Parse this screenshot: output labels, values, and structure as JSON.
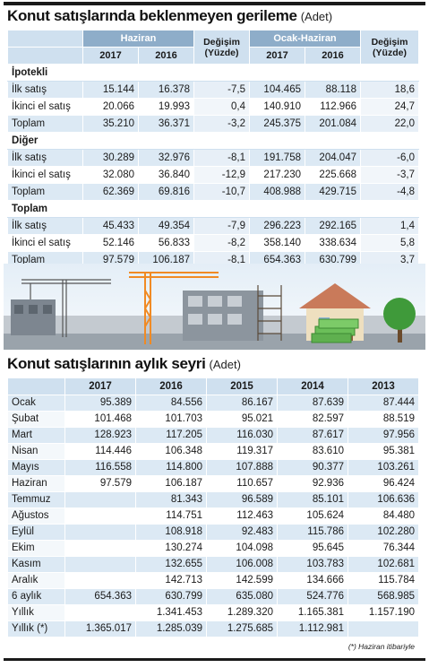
{
  "table1": {
    "title": "Konut satışlarında beklenmeyen gerileme",
    "unit": "(Adet)",
    "period1": "Haziran",
    "period2": "Ocak-Haziran",
    "change_header_line1": "Değişim",
    "change_header_line2": "(Yüzde)",
    "years": [
      "2017",
      "2016"
    ],
    "sections": [
      {
        "name": "İpotekli",
        "rows": [
          {
            "label": "İlk satış",
            "v": [
              "15.144",
              "16.378",
              "-7,5",
              "104.465",
              "88.118",
              "18,6"
            ]
          },
          {
            "label": "İkinci el satış",
            "v": [
              "20.066",
              "19.993",
              "0,4",
              "140.910",
              "112.966",
              "24,7"
            ]
          },
          {
            "label": "Toplam",
            "v": [
              "35.210",
              "36.371",
              "-3,2",
              "245.375",
              "201.084",
              "22,0"
            ]
          }
        ]
      },
      {
        "name": "Diğer",
        "rows": [
          {
            "label": "İlk satış",
            "v": [
              "30.289",
              "32.976",
              "-8,1",
              "191.758",
              "204.047",
              "-6,0"
            ]
          },
          {
            "label": "İkinci el satış",
            "v": [
              "32.080",
              "36.840",
              "-12,9",
              "217.230",
              "225.668",
              "-3,7"
            ]
          },
          {
            "label": "Toplam",
            "v": [
              "62.369",
              "69.816",
              "-10,7",
              "408.988",
              "429.715",
              "-4,8"
            ]
          }
        ]
      },
      {
        "name": "Toplam",
        "rows": [
          {
            "label": "İlk satış",
            "v": [
              "45.433",
              "49.354",
              "-7,9",
              "296.223",
              "292.165",
              "1,4"
            ]
          },
          {
            "label": "İkinci el satış",
            "v": [
              "52.146",
              "56.833",
              "-8,2",
              "358.140",
              "338.634",
              "5,8"
            ]
          },
          {
            "label": "Toplam",
            "v": [
              "97.579",
              "106.187",
              "-8,1",
              "654.363",
              "630.799",
              "3,7"
            ]
          }
        ]
      }
    ]
  },
  "table2": {
    "title": "Konut satışlarının aylık seyri",
    "unit": "(Adet)",
    "years": [
      "2017",
      "2016",
      "2015",
      "2014",
      "2013"
    ],
    "rows": [
      {
        "label": "Ocak",
        "v": [
          "95.389",
          "84.556",
          "86.167",
          "87.639",
          "87.444"
        ]
      },
      {
        "label": "Şubat",
        "v": [
          "101.468",
          "101.703",
          "95.021",
          "82.597",
          "88.519"
        ]
      },
      {
        "label": "Mart",
        "v": [
          "128.923",
          "117.205",
          "116.030",
          "87.617",
          "97.956"
        ]
      },
      {
        "label": "Nisan",
        "v": [
          "114.446",
          "106.348",
          "119.317",
          "83.610",
          "95.381"
        ]
      },
      {
        "label": "Mayıs",
        "v": [
          "116.558",
          "114.800",
          "107.888",
          "90.377",
          "103.261"
        ]
      },
      {
        "label": "Haziran",
        "v": [
          "97.579",
          "106.187",
          "110.657",
          "92.936",
          "96.424"
        ]
      },
      {
        "label": "Temmuz",
        "v": [
          "",
          "81.343",
          "96.589",
          "85.101",
          "106.636"
        ]
      },
      {
        "label": "Ağustos",
        "v": [
          "",
          "114.751",
          "112.463",
          "105.624",
          "84.480"
        ]
      },
      {
        "label": "Eylül",
        "v": [
          "",
          "108.918",
          "92.483",
          "115.786",
          "102.280"
        ]
      },
      {
        "label": "Ekim",
        "v": [
          "",
          "130.274",
          "104.098",
          "95.645",
          "76.344"
        ]
      },
      {
        "label": "Kasım",
        "v": [
          "",
          "132.655",
          "106.008",
          "103.783",
          "102.681"
        ]
      },
      {
        "label": "Aralık",
        "v": [
          "",
          "142.713",
          "142.599",
          "134.666",
          "115.784"
        ]
      },
      {
        "label": "6 aylık",
        "v": [
          "654.363",
          "630.799",
          "635.080",
          "524.776",
          "568.985"
        ]
      },
      {
        "label": "Yıllık",
        "v": [
          "",
          "1.341.453",
          "1.289.320",
          "1.165.381",
          "1.157.190"
        ]
      },
      {
        "label": "Yıllık (*)",
        "v": [
          "1.365.017",
          "1.285.039",
          "1.275.685",
          "1.112.981",
          ""
        ]
      }
    ],
    "footnote": "(*) Haziran itibariyle"
  },
  "colors": {
    "header_blue": "#8eadc9",
    "light_blue": "#cfe0ef",
    "row_blue": "#dce9f4",
    "crane_orange": "#f08a24"
  }
}
